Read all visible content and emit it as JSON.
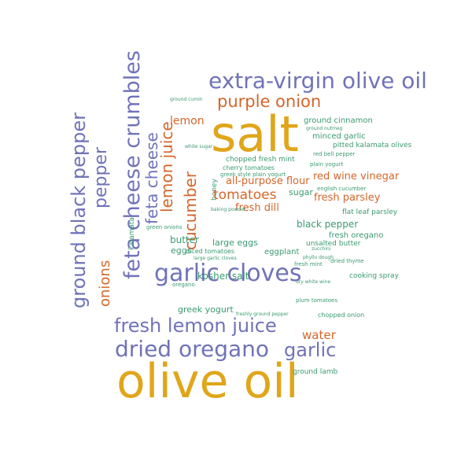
{
  "colors": {
    "gold": "#e0a61a",
    "purple": "#6f73b8",
    "orange": "#d4662a",
    "green": "#3a9a70"
  },
  "words": {
    "olive_oil": "olive oil",
    "salt": "salt",
    "extra_virgin_olive_oil": "extra-virgin olive oil",
    "garlic_cloves": "garlic cloves",
    "dried_oregano": "dried oregano",
    "fresh_lemon_juice": "fresh lemon juice",
    "purple_onion": "purple onion",
    "garlic": "garlic",
    "feta_cheese_crumbles": "feta cheese crumbles",
    "ground_black_pepper": "ground black pepper",
    "pepper": "pepper",
    "onions": "onions",
    "feta_cheese": "feta cheese",
    "lemon_juice": "lemon juice",
    "cucumber": "cucumber",
    "lemon": "lemon",
    "tomatoes": "tomatoes",
    "all_purpose_flour": "all-purpose flour",
    "fresh_dill": "fresh dill",
    "red_wine_vinegar": "red wine vinegar",
    "fresh_parsley": "fresh parsley",
    "black_pepper": "black pepper",
    "water": "water",
    "kosher_salt": "kosher salt",
    "greek_yogurt": "greek yogurt",
    "butter": "butter",
    "eggs": "eggs",
    "large_eggs": "large eggs",
    "sugar": "sugar",
    "eggplant": "eggplant",
    "ground_cinnamon": "ground cinnamon",
    "minced_garlic": "minced garlic",
    "pitted_kalamata_olives": "pitted kalamata olives",
    "chopped_fresh_mint": "chopped fresh mint",
    "cherry_tomatoes": "cherry tomatoes",
    "fresh_oregano": "fresh oregano",
    "unsalted_butter": "unsalted butter",
    "flat_leaf_parsley": "flat leaf parsley",
    "cooking_spray": "cooking spray",
    "ground_lamb": "ground lamb",
    "kalamata": "kalamata",
    "honey": "honey",
    "diced_tomatoes": "diced tomatoes",
    "chopped_onion": "chopped onion",
    "dried_thyme": "dried thyme",
    "fresh_mint": "fresh mint",
    "plain_yogurt": "plain yogurt",
    "red_bell_pepper": "red bell pepper",
    "greek_style_plain_yogurt": "greek style plain yogurt",
    "green_onions": "green onions",
    "english_cucumber": "english cucumber",
    "oregano": "oregano",
    "plum_tomatoes": "plum tomatoes",
    "ground_cumin": "ground cumin",
    "white_sugar": "white sugar",
    "baking_powder": "baking powder",
    "freshly_ground_pepper": "freshly ground pepper",
    "dry_white_wine": "dry white wine",
    "phyllo_dough": "phyllo dough",
    "ground_nutmeg": "ground nutmeg",
    "large_garlic_cloves": "large garlic cloves",
    "zucchini": "zucchini"
  }
}
